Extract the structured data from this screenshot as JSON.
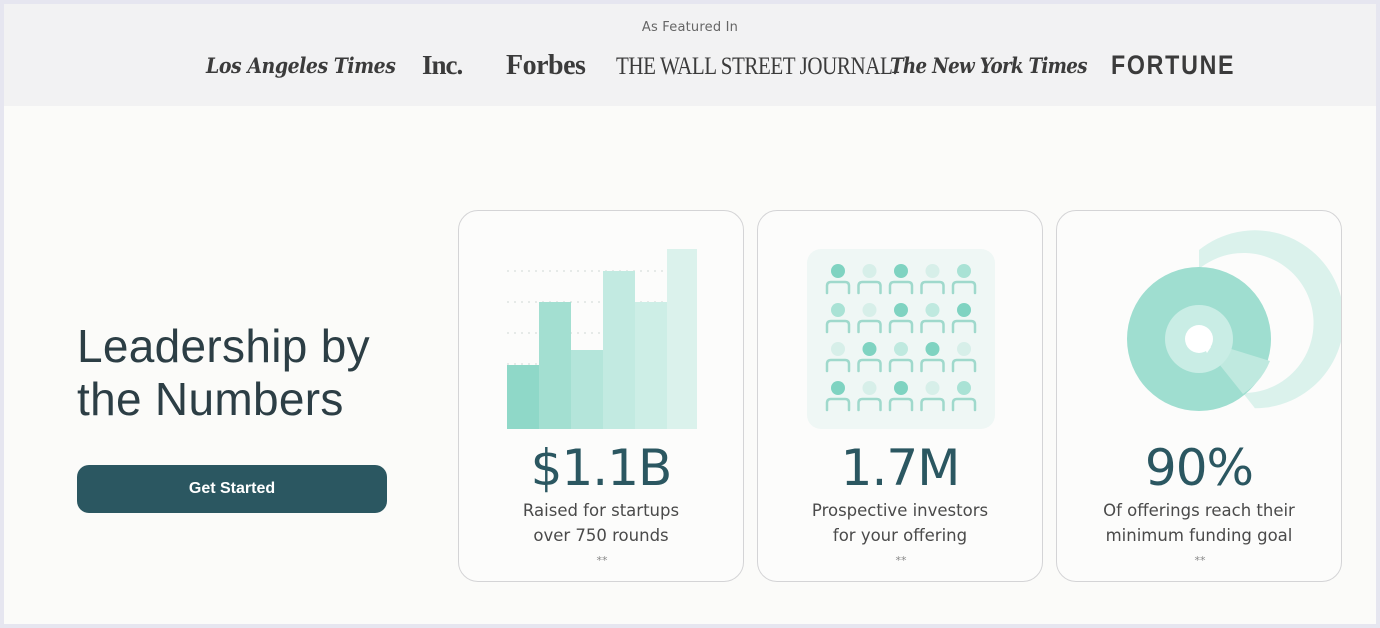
{
  "press": {
    "label": "As Featured In",
    "logos": [
      "Los Angeles Times",
      "Inc.",
      "Forbes",
      "THE WALL STREET JOURNAL.",
      "The New York Times",
      "FORTUNE"
    ]
  },
  "hero": {
    "title_line1": "Leadership by",
    "title_line2": "the Numbers",
    "cta_label": "Get Started"
  },
  "stats": [
    {
      "value": "$1.1B",
      "line1": "Raised for startups",
      "line2": "over 750 rounds",
      "mark": "**"
    },
    {
      "value": "1.7M",
      "line1": "Prospective investors",
      "line2": "for your offering",
      "mark": "**"
    },
    {
      "value": "90%",
      "line1": "Of offerings reach their",
      "line2": "minimum funding goal",
      "mark": "**"
    }
  ],
  "colors": {
    "accent_dark": "#2b5761",
    "mint": "#8fd8c8",
    "mint_light": "#cdeee6"
  }
}
